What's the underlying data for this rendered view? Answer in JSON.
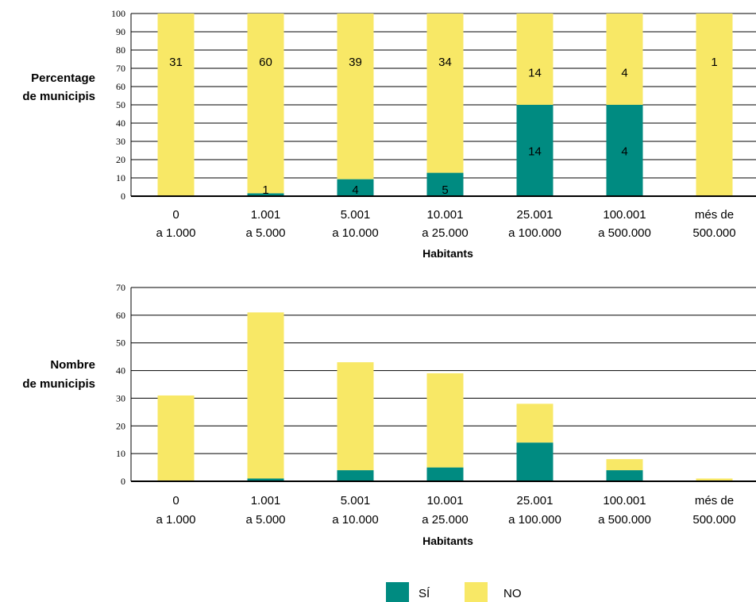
{
  "colors": {
    "si": "#008b81",
    "no": "#f8e866",
    "grid": "#000000"
  },
  "legend": [
    {
      "key": "si",
      "label": "SÍ"
    },
    {
      "key": "no",
      "label": "NO"
    }
  ],
  "chart_data": [
    {
      "type": "bar",
      "stacked": true,
      "ylabel": [
        "Percentage",
        "de municipis"
      ],
      "xlabel": "Habitants",
      "ylim": [
        0,
        100
      ],
      "yticks": [
        0,
        10,
        20,
        30,
        40,
        50,
        60,
        70,
        80,
        90,
        100
      ],
      "categories": [
        [
          "0",
          "a 1.000"
        ],
        [
          "1.001",
          "a 5.000"
        ],
        [
          "5.001",
          "a 10.000"
        ],
        [
          "10.001",
          "a 25.000"
        ],
        [
          "25.001",
          "a 100.000"
        ],
        [
          "100.001",
          "a 500.000"
        ],
        [
          "més de",
          "500.000"
        ]
      ],
      "series": [
        {
          "name": "SÍ",
          "key": "si",
          "values": [
            0,
            1.6,
            9.3,
            12.8,
            50,
            50,
            0
          ]
        },
        {
          "name": "NO",
          "key": "no",
          "values": [
            100,
            98.4,
            90.7,
            87.2,
            50,
            50,
            100
          ]
        }
      ],
      "data_labels": {
        "si": [
          "",
          "1",
          "4",
          "5",
          "14",
          "4",
          ""
        ],
        "no": [
          "31",
          "60",
          "39",
          "34",
          "14",
          "4",
          "1"
        ]
      }
    },
    {
      "type": "bar",
      "stacked": true,
      "ylabel": [
        "Nombre",
        "de municipis"
      ],
      "xlabel": "Habitants",
      "ylim": [
        0,
        70
      ],
      "yticks": [
        0,
        10,
        20,
        30,
        40,
        50,
        60,
        70
      ],
      "categories": [
        [
          "0",
          "a 1.000"
        ],
        [
          "1.001",
          "a 5.000"
        ],
        [
          "5.001",
          "a 10.000"
        ],
        [
          "10.001",
          "a 25.000"
        ],
        [
          "25.001",
          "a 100.000"
        ],
        [
          "100.001",
          "a 500.000"
        ],
        [
          "més de",
          "500.000"
        ]
      ],
      "series": [
        {
          "name": "SÍ",
          "key": "si",
          "values": [
            0,
            1,
            4,
            5,
            14,
            4,
            0
          ]
        },
        {
          "name": "NO",
          "key": "no",
          "values": [
            31,
            60,
            39,
            34,
            14,
            4,
            1
          ]
        }
      ]
    }
  ]
}
